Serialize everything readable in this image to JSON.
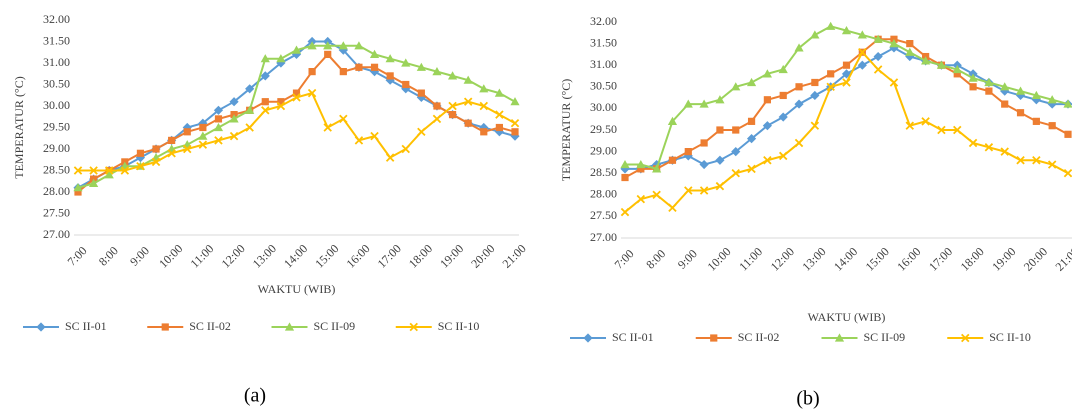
{
  "chart_data": [
    {
      "type": "line",
      "caption": "(a)",
      "y_label": "TEMPERATUR (°C)",
      "x_label": "WAKTU (WIB)",
      "grid": false,
      "categories": [
        "7:00",
        null,
        "8:00",
        null,
        "9:00",
        null,
        "10:00",
        null,
        "11:00",
        null,
        "12:00",
        null,
        "13:00",
        null,
        "14:00",
        null,
        "15:00",
        null,
        "16:00",
        null,
        "17:00",
        null,
        "18:00",
        null,
        "19:00",
        null,
        "20:00",
        null,
        "21:00"
      ],
      "ylim": [
        27,
        32
      ],
      "yticks": [
        {
          "value": 27,
          "label": "27.00"
        },
        {
          "value": 27.5,
          "label": "27.50"
        },
        {
          "value": 28,
          "label": "28.00"
        },
        {
          "value": 28.5,
          "label": "28.50"
        },
        {
          "value": 29,
          "label": "29.00"
        },
        {
          "value": 29.5,
          "label": "29.50"
        },
        {
          "value": 30,
          "label": "30.00"
        },
        {
          "value": 30.5,
          "label": "30.50"
        },
        {
          "value": 31,
          "label": "31.00"
        },
        {
          "value": 31.5,
          "label": "31.50"
        },
        {
          "value": 32,
          "label": "32.00"
        }
      ],
      "series": [
        {
          "name": "SC II-01",
          "color": "#5b9bd5",
          "marker": "diamond",
          "values": [
            28.1,
            28.3,
            28.5,
            28.6,
            28.8,
            29.0,
            29.2,
            29.5,
            29.6,
            29.9,
            30.1,
            30.4,
            30.7,
            31.0,
            31.2,
            31.5,
            31.5,
            31.3,
            30.9,
            30.8,
            30.6,
            30.4,
            30.2,
            30.0,
            29.8,
            29.6,
            29.5,
            29.4,
            29.3
          ]
        },
        {
          "name": "SC II-02",
          "color": "#ed7d31",
          "marker": "square",
          "values": [
            28.0,
            28.3,
            28.5,
            28.7,
            28.9,
            29.0,
            29.2,
            29.4,
            29.5,
            29.7,
            29.8,
            29.9,
            30.1,
            30.1,
            30.3,
            30.8,
            31.2,
            30.8,
            30.9,
            30.9,
            30.7,
            30.5,
            30.3,
            30.0,
            29.8,
            29.6,
            29.4,
            29.5,
            29.4
          ]
        },
        {
          "name": "SC II-09",
          "color": "#9bd35a",
          "marker": "triangle",
          "values": [
            28.1,
            28.2,
            28.4,
            28.6,
            28.6,
            28.8,
            29.0,
            29.1,
            29.3,
            29.5,
            29.7,
            29.9,
            31.1,
            31.1,
            31.3,
            31.4,
            31.4,
            31.4,
            31.4,
            31.2,
            31.1,
            31.0,
            30.9,
            30.8,
            30.7,
            30.6,
            30.4,
            30.3,
            30.1
          ]
        },
        {
          "name": "SC II-10",
          "color": "#ffc000",
          "marker": "x",
          "values": [
            28.5,
            28.5,
            28.5,
            28.5,
            28.6,
            28.7,
            28.9,
            29.0,
            29.1,
            29.2,
            29.3,
            29.5,
            29.9,
            30.0,
            30.2,
            30.3,
            29.5,
            29.7,
            29.2,
            29.3,
            28.8,
            29.0,
            29.4,
            29.7,
            30.0,
            30.1,
            30.0,
            29.8,
            29.6
          ]
        }
      ]
    },
    {
      "type": "line",
      "caption": "(b)",
      "y_label": "TEMPERATUR (°C)",
      "x_label": "WAKTU (WIB)",
      "grid": false,
      "categories": [
        "7:00",
        null,
        "8:00",
        null,
        "9:00",
        null,
        "10:00",
        null,
        "11:00",
        null,
        "12:00",
        null,
        "13:00",
        null,
        "14:00",
        null,
        "15:00",
        null,
        "16:00",
        null,
        "17:00",
        null,
        "18:00",
        null,
        "19:00",
        null,
        "20:00",
        null,
        "21:00"
      ],
      "ylim": [
        27,
        32
      ],
      "yticks": [
        {
          "value": 27,
          "label": "27.00"
        },
        {
          "value": 27.5,
          "label": "27.50"
        },
        {
          "value": 28,
          "label": "28.00"
        },
        {
          "value": 28.5,
          "label": "28.50"
        },
        {
          "value": 29,
          "label": "29.00"
        },
        {
          "value": 29.5,
          "label": "29.50"
        },
        {
          "value": 30,
          "label": "30.00"
        },
        {
          "value": 30.5,
          "label": "30.50"
        },
        {
          "value": 31,
          "label": "31.00"
        },
        {
          "value": 31.5,
          "label": "31.50"
        },
        {
          "value": 32,
          "label": "32.00"
        }
      ],
      "series": [
        {
          "name": "SC II-01",
          "color": "#5b9bd5",
          "marker": "diamond",
          "values": [
            28.6,
            28.6,
            28.7,
            28.8,
            28.9,
            28.7,
            28.8,
            29.0,
            29.3,
            29.6,
            29.8,
            30.1,
            30.3,
            30.5,
            30.8,
            31.0,
            31.2,
            31.4,
            31.2,
            31.1,
            31.0,
            31.0,
            30.8,
            30.6,
            30.4,
            30.3,
            30.2,
            30.1,
            30.1
          ]
        },
        {
          "name": "SC II-02",
          "color": "#ed7d31",
          "marker": "square",
          "values": [
            28.4,
            28.6,
            28.6,
            28.8,
            29.0,
            29.2,
            29.5,
            29.5,
            29.7,
            30.2,
            30.3,
            30.5,
            30.6,
            30.8,
            31.0,
            31.3,
            31.6,
            31.6,
            31.5,
            31.2,
            31.0,
            30.8,
            30.5,
            30.4,
            30.1,
            29.9,
            29.7,
            29.6,
            29.4
          ]
        },
        {
          "name": "SC II-09",
          "color": "#9bd35a",
          "marker": "triangle",
          "values": [
            28.7,
            28.7,
            28.6,
            29.7,
            30.1,
            30.1,
            30.2,
            30.5,
            30.6,
            30.8,
            30.9,
            31.4,
            31.7,
            31.9,
            31.8,
            31.7,
            31.6,
            31.5,
            31.3,
            31.1,
            31.0,
            30.9,
            30.7,
            30.6,
            30.5,
            30.4,
            30.3,
            30.2,
            30.1
          ]
        },
        {
          "name": "SC II-10",
          "color": "#ffc000",
          "marker": "x",
          "values": [
            27.6,
            27.9,
            28.0,
            27.7,
            28.1,
            28.1,
            28.2,
            28.5,
            28.6,
            28.8,
            28.9,
            29.2,
            29.6,
            30.5,
            30.6,
            31.3,
            30.9,
            30.6,
            29.6,
            29.7,
            29.5,
            29.5,
            29.2,
            29.1,
            29.0,
            28.8,
            28.8,
            28.7,
            28.5
          ]
        }
      ]
    }
  ]
}
